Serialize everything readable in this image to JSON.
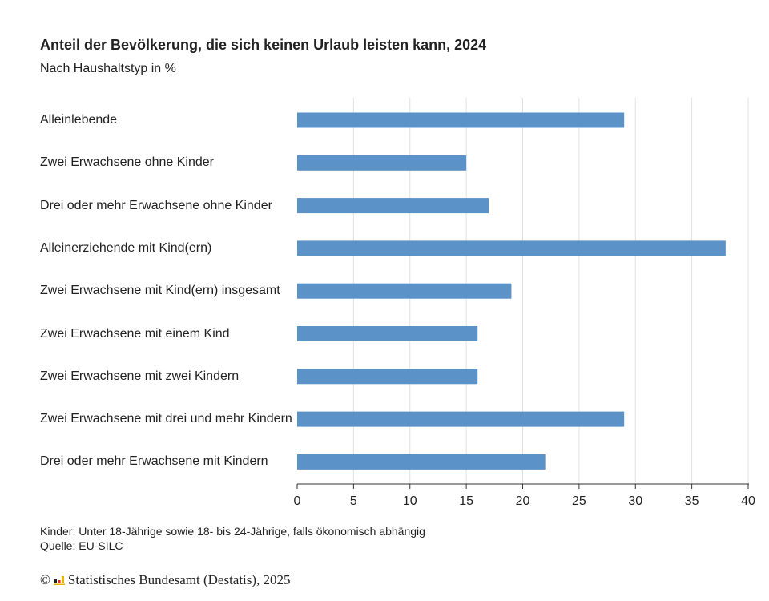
{
  "chart_data": {
    "type": "bar",
    "orientation": "horizontal",
    "title": "Anteil der Bevölkerung, die sich keinen Urlaub leisten kann, 2024",
    "subtitle": "Nach Haushaltstyp in %",
    "categories": [
      "Alleinlebende",
      "Zwei Erwachsene ohne Kinder",
      "Drei oder mehr Erwachsene ohne Kinder",
      "Alleinerziehende mit Kind(ern)",
      "Zwei Erwachsene mit Kind(ern) insgesamt",
      "Zwei Erwachsene mit einem Kind",
      "Zwei Erwachsene mit zwei Kindern",
      "Zwei Erwachsene mit drei und mehr Kindern",
      "Drei oder mehr Erwachsene mit Kindern"
    ],
    "values": [
      29,
      15,
      17,
      38,
      19,
      16,
      16,
      29,
      22
    ],
    "xlim": [
      0,
      40
    ],
    "xticks": [
      0,
      5,
      10,
      15,
      20,
      25,
      30,
      35,
      40
    ],
    "grid": true,
    "bar_color": "#5b92c8"
  },
  "notes": {
    "definition": "Kinder: Unter 18-Jährige sowie 18- bis 24-Jährige, falls ökonomisch abhängig",
    "source": "Quelle: EU-SILC"
  },
  "footer": {
    "copyright": "©",
    "text": "Statistisches Bundesamt (Destatis), 2025"
  }
}
